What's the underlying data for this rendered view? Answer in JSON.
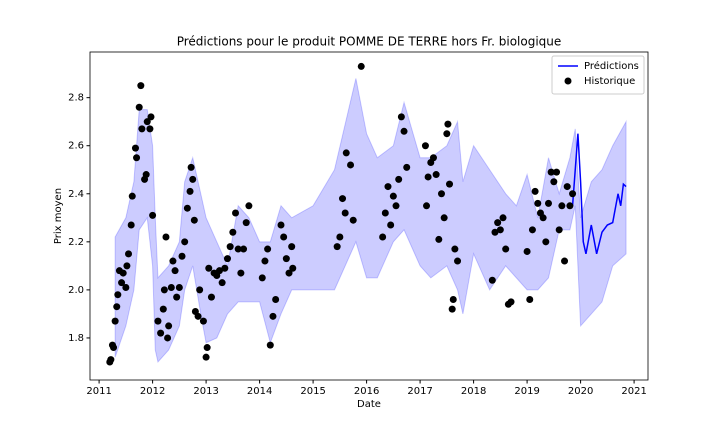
{
  "chart_data": {
    "type": "scatter",
    "title": "Prédictions pour le produit POMME DE TERRE hors Fr. biologique",
    "x_label": "Date",
    "y_label": "Prix moyen",
    "xlim": [
      2010.83,
      2021.26
    ],
    "ylim": [
      1.625,
      2.99
    ],
    "xticks": [
      2011,
      2012,
      2013,
      2014,
      2015,
      2016,
      2017,
      2018,
      2019,
      2020,
      2021
    ],
    "yticks": [
      1.8,
      {
        "value": 2,
        "label": "2.0"
      },
      2.2,
      2.4,
      2.6,
      2.8
    ],
    "legend": "upper right",
    "band": {
      "color": "#0000ff",
      "x": [
        2011.3,
        2011.5,
        2011.65,
        2011.75,
        2011.9,
        2012.0,
        2012.05,
        2012.1,
        2012.3,
        2012.5,
        2012.6,
        2012.75,
        2012.9,
        2013.0,
        2013.2,
        2013.4,
        2013.6,
        2013.8,
        2014.0,
        2014.2,
        2014.4,
        2014.6,
        2015.0,
        2015.4,
        2015.8,
        2016.0,
        2016.2,
        2016.5,
        2016.7,
        2017.0,
        2017.2,
        2017.5,
        2017.7,
        2017.8,
        2018.0,
        2018.3,
        2018.6,
        2018.8,
        2019.0,
        2019.2,
        2019.4,
        2019.6,
        2019.8,
        2019.9,
        2020.0,
        2020.2,
        2020.4,
        2020.6,
        2020.85
      ],
      "upper": [
        2.22,
        2.3,
        2.45,
        2.75,
        2.75,
        2.6,
        2.3,
        2.05,
        2.1,
        2.2,
        2.45,
        2.55,
        2.4,
        2.3,
        2.2,
        2.1,
        2.35,
        2.3,
        2.2,
        2.2,
        2.35,
        2.3,
        2.35,
        2.5,
        2.88,
        2.65,
        2.55,
        2.6,
        2.78,
        2.55,
        2.55,
        2.6,
        2.7,
        2.45,
        2.6,
        2.5,
        2.4,
        2.35,
        2.48,
        2.3,
        2.55,
        2.4,
        2.55,
        2.67,
        2.3,
        2.45,
        2.5,
        2.6,
        2.7
      ],
      "lower": [
        1.72,
        1.85,
        2.0,
        2.25,
        2.3,
        2.1,
        1.75,
        1.7,
        1.75,
        1.85,
        2.0,
        2.1,
        1.9,
        1.78,
        1.8,
        1.9,
        1.95,
        1.95,
        1.95,
        1.78,
        1.9,
        2.0,
        2.0,
        2.0,
        2.2,
        2.05,
        2.05,
        2.2,
        2.25,
        2.1,
        2.05,
        2.1,
        2.0,
        1.9,
        2.15,
        2.0,
        2.1,
        2.05,
        2.0,
        2.0,
        2.05,
        2.25,
        2.25,
        2.35,
        1.85,
        1.9,
        1.95,
        2.1,
        2.15
      ]
    },
    "series": [
      {
        "name": "Prédictions",
        "kind": "line",
        "color": "#0000ff",
        "x": [
          2019.85,
          2019.95,
          2020.0,
          2020.05,
          2020.1,
          2020.2,
          2020.3,
          2020.4,
          2020.5,
          2020.6,
          2020.7,
          2020.75,
          2020.8,
          2020.85
        ],
        "values": [
          2.35,
          2.65,
          2.45,
          2.2,
          2.15,
          2.27,
          2.15,
          2.24,
          2.27,
          2.28,
          2.4,
          2.35,
          2.44,
          2.43
        ]
      },
      {
        "name": "Historique",
        "kind": "scatter",
        "color": "#000000",
        "x": [
          2011.2,
          2011.22,
          2011.25,
          2011.27,
          2011.3,
          2011.33,
          2011.35,
          2011.38,
          2011.42,
          2011.45,
          2011.5,
          2011.52,
          2011.55,
          2011.6,
          2011.62,
          2011.68,
          2011.7,
          2011.75,
          2011.78,
          2011.8,
          2011.85,
          2011.88,
          2011.9,
          2011.95,
          2011.97,
          2012.0,
          2012.1,
          2012.15,
          2012.2,
          2012.22,
          2012.25,
          2012.28,
          2012.3,
          2012.35,
          2012.38,
          2012.42,
          2012.45,
          2012.5,
          2012.55,
          2012.6,
          2012.65,
          2012.7,
          2012.72,
          2012.75,
          2012.78,
          2012.8,
          2012.85,
          2012.88,
          2012.95,
          2013.0,
          2013.02,
          2013.05,
          2013.1,
          2013.15,
          2013.2,
          2013.25,
          2013.3,
          2013.35,
          2013.4,
          2013.45,
          2013.5,
          2013.55,
          2013.6,
          2013.65,
          2013.7,
          2013.75,
          2013.8,
          2014.05,
          2014.1,
          2014.15,
          2014.2,
          2014.25,
          2014.3,
          2014.4,
          2014.45,
          2014.5,
          2014.55,
          2014.6,
          2014.62,
          2015.45,
          2015.5,
          2015.55,
          2015.6,
          2015.62,
          2015.7,
          2015.75,
          2015.9,
          2016.3,
          2016.35,
          2016.4,
          2016.45,
          2016.5,
          2016.55,
          2016.6,
          2016.65,
          2016.7,
          2016.75,
          2017.1,
          2017.12,
          2017.15,
          2017.2,
          2017.25,
          2017.3,
          2017.35,
          2017.4,
          2017.45,
          2017.5,
          2017.52,
          2017.55,
          2017.6,
          2017.62,
          2017.65,
          2017.7,
          2018.35,
          2018.4,
          2018.45,
          2018.5,
          2018.55,
          2018.6,
          2018.65,
          2018.7,
          2019.0,
          2019.05,
          2019.1,
          2019.15,
          2019.2,
          2019.25,
          2019.3,
          2019.35,
          2019.4,
          2019.45,
          2019.5,
          2019.55,
          2019.6,
          2019.65,
          2019.7,
          2019.75,
          2019.8,
          2019.85
        ],
        "values": [
          1.7,
          1.71,
          1.77,
          1.76,
          1.87,
          1.93,
          1.98,
          2.08,
          2.03,
          2.07,
          2.01,
          2.1,
          2.15,
          2.27,
          2.39,
          2.59,
          2.55,
          2.76,
          2.85,
          2.67,
          2.46,
          2.48,
          2.7,
          2.67,
          2.72,
          2.31,
          1.87,
          1.82,
          1.92,
          2.0,
          2.22,
          1.8,
          1.85,
          2.01,
          2.12,
          2.08,
          1.97,
          2.01,
          2.14,
          2.2,
          2.34,
          2.41,
          2.51,
          2.46,
          2.29,
          1.91,
          1.89,
          2.0,
          1.87,
          1.72,
          1.76,
          2.09,
          1.97,
          2.07,
          2.06,
          2.08,
          2.03,
          2.09,
          2.13,
          2.18,
          2.24,
          2.32,
          2.17,
          2.07,
          2.17,
          2.28,
          2.35,
          2.05,
          2.12,
          2.17,
          1.77,
          1.89,
          1.96,
          2.27,
          2.22,
          2.13,
          2.07,
          2.18,
          2.09,
          2.18,
          2.22,
          2.38,
          2.32,
          2.57,
          2.52,
          2.29,
          2.93,
          2.22,
          2.32,
          2.43,
          2.27,
          2.39,
          2.35,
          2.46,
          2.72,
          2.66,
          2.51,
          2.6,
          2.35,
          2.47,
          2.53,
          2.55,
          2.48,
          2.21,
          2.4,
          2.3,
          2.65,
          2.69,
          2.44,
          1.92,
          1.96,
          2.17,
          2.12,
          2.04,
          2.24,
          2.28,
          2.25,
          2.3,
          2.17,
          1.94,
          1.95,
          2.16,
          1.96,
          2.25,
          2.41,
          2.36,
          2.32,
          2.3,
          2.2,
          2.36,
          2.49,
          2.45,
          2.49,
          2.25,
          2.35,
          2.12,
          2.43,
          2.35,
          2.4
        ]
      }
    ]
  }
}
